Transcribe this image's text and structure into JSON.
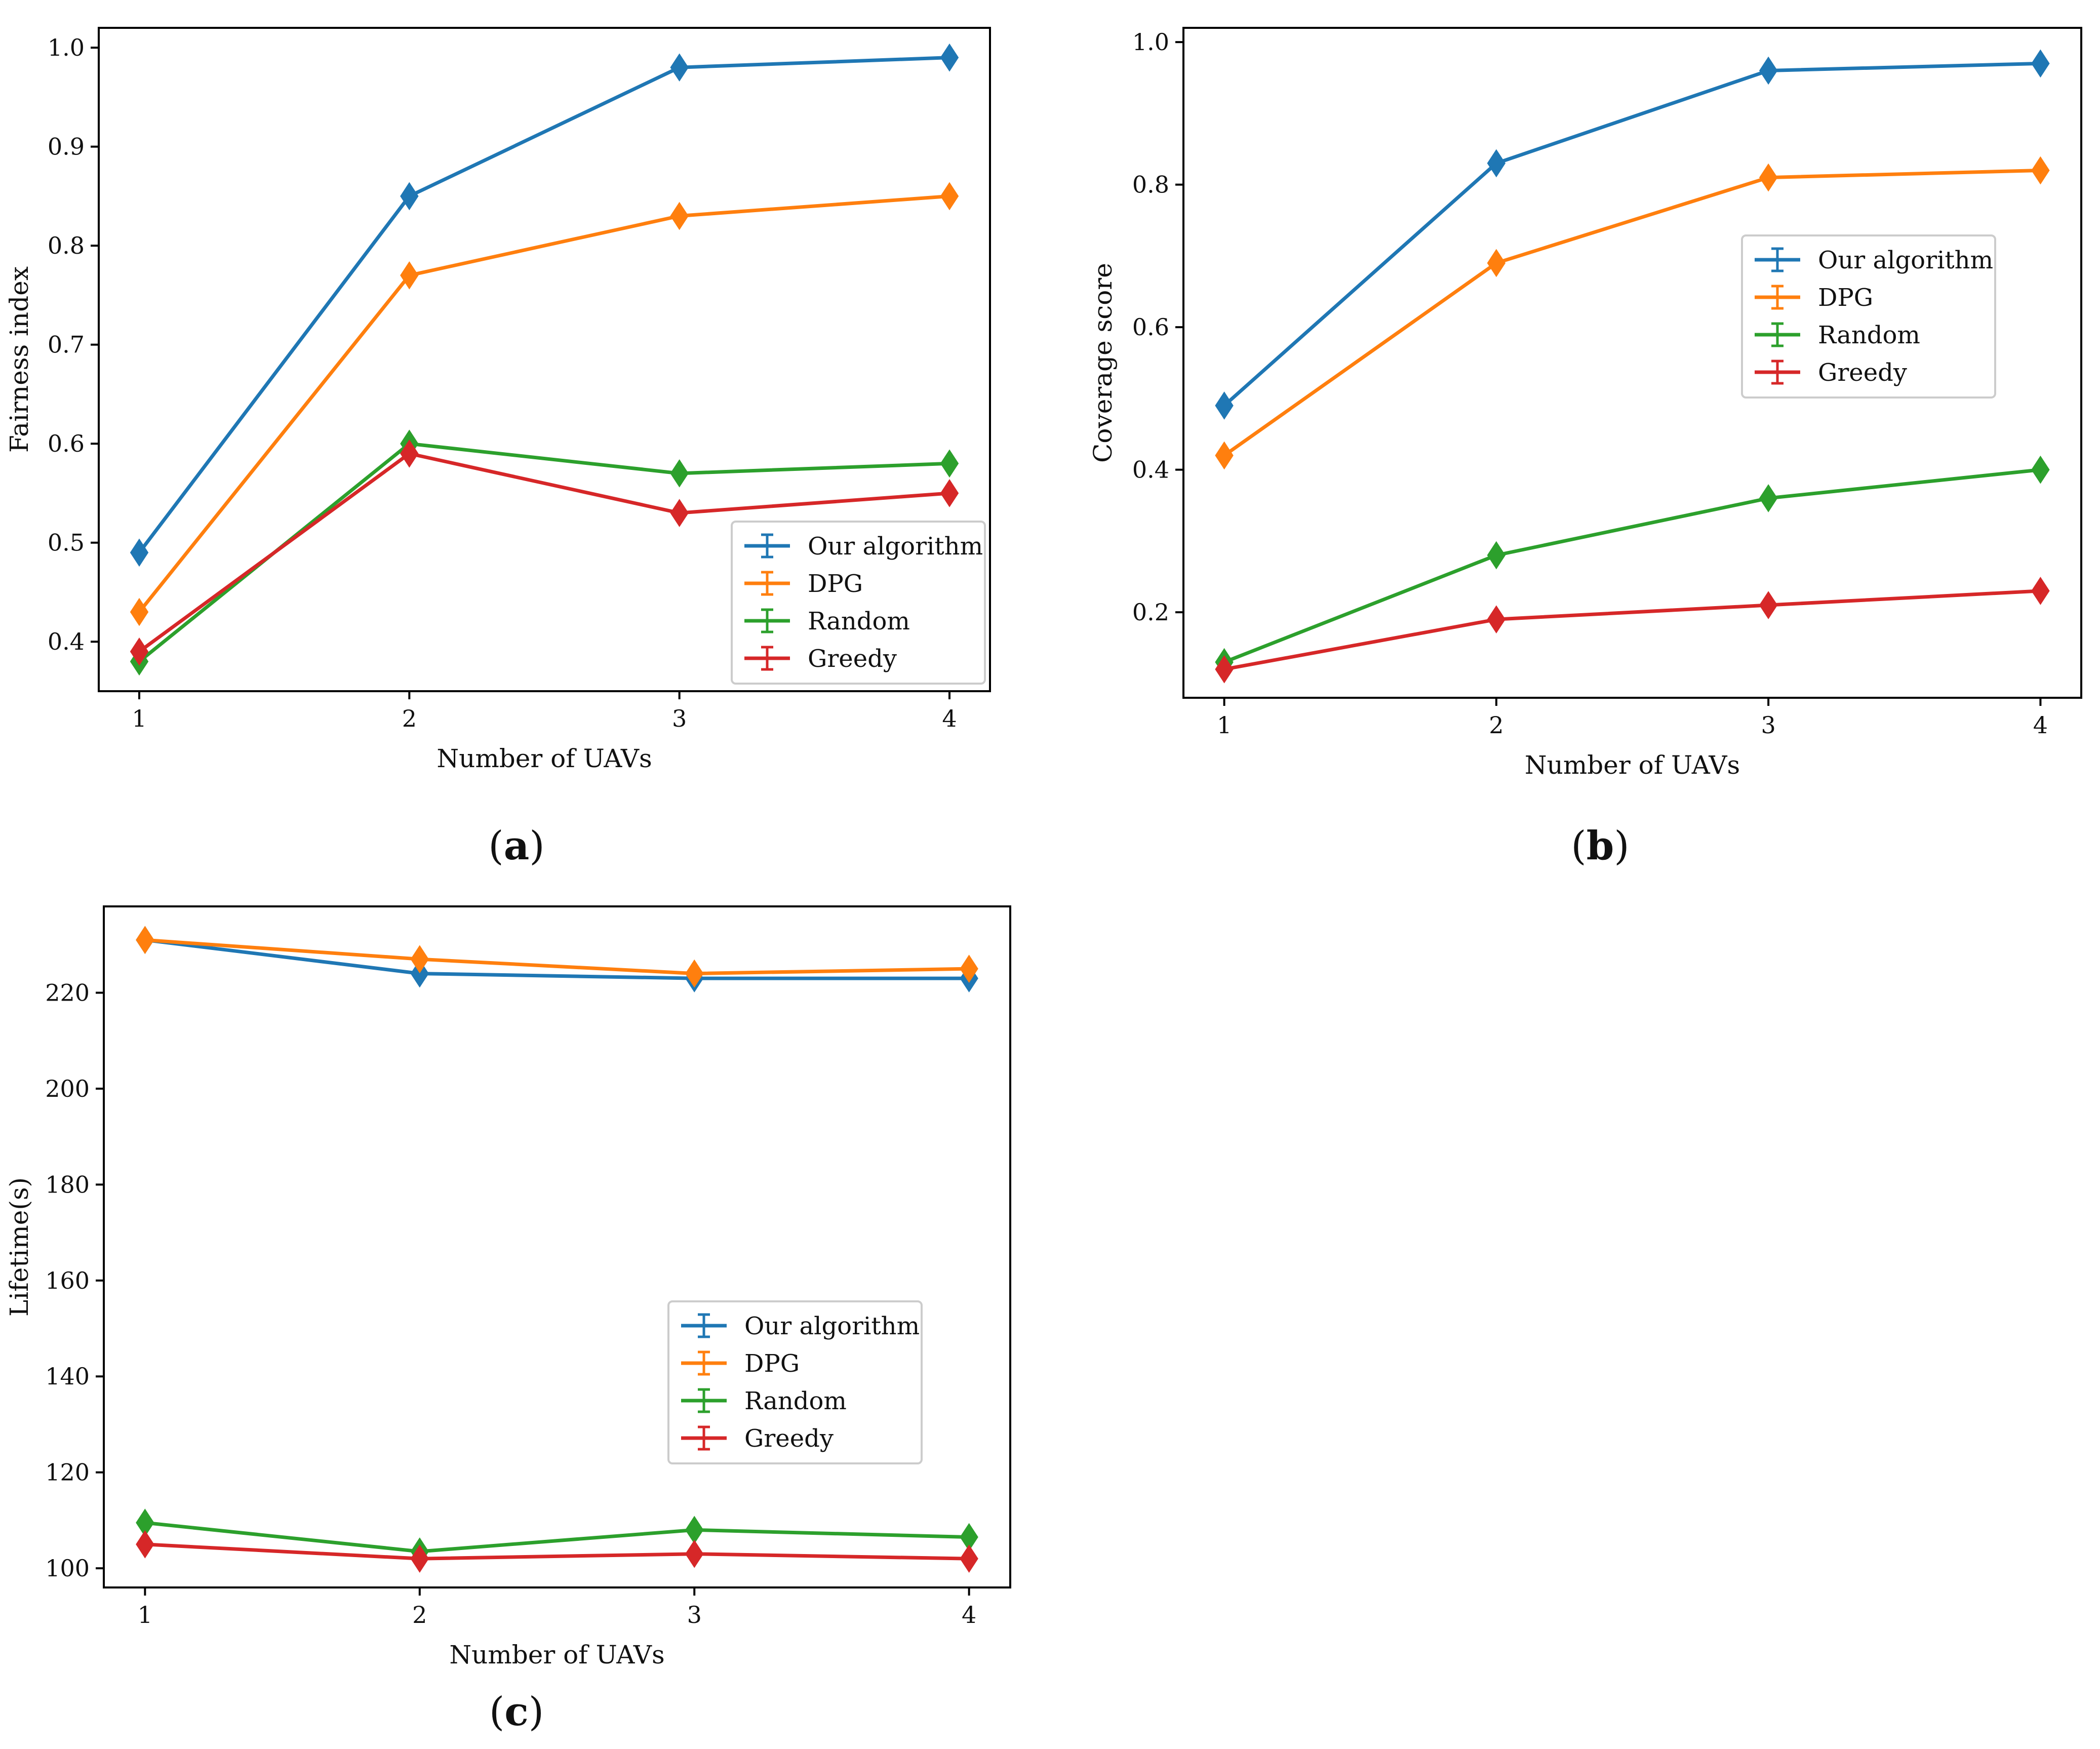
{
  "panels": [
    {
      "id": "a",
      "caption_letter": "a",
      "caption_open": "(",
      "caption_close": ")"
    },
    {
      "id": "b",
      "caption_letter": "b",
      "caption_open": "(",
      "caption_close": ")"
    },
    {
      "id": "c",
      "caption_letter": "c",
      "caption_open": "(",
      "caption_close": ")"
    }
  ],
  "colors": {
    "Our algorithm": "#1f77b4",
    "DPG": "#ff7f0e",
    "Random": "#2ca02c",
    "Greedy": "#d62728"
  },
  "chart_data": [
    {
      "panel": "a",
      "type": "line",
      "xlabel": "Number of UAVs",
      "ylabel": "Fairness index",
      "x": [
        1,
        2,
        3,
        4
      ],
      "xlim": [
        0.85,
        4.15
      ],
      "ylim": [
        0.35,
        1.02
      ],
      "yticks": [
        0.4,
        0.5,
        0.6,
        0.7,
        0.8,
        0.9,
        1.0
      ],
      "ytick_labels": [
        "0.4",
        "0.5",
        "0.6",
        "0.7",
        "0.8",
        "0.9",
        "1.0"
      ],
      "xticks": [
        1,
        2,
        3,
        4
      ],
      "xtick_labels": [
        "1",
        "2",
        "3",
        "4"
      ],
      "legend": "lower-right",
      "series": [
        {
          "name": "Our algorithm",
          "values": [
            0.49,
            0.85,
            0.98,
            0.99
          ]
        },
        {
          "name": "DPG",
          "values": [
            0.43,
            0.77,
            0.83,
            0.85
          ]
        },
        {
          "name": "Random",
          "values": [
            0.38,
            0.6,
            0.57,
            0.58
          ]
        },
        {
          "name": "Greedy",
          "values": [
            0.39,
            0.59,
            0.53,
            0.55
          ]
        }
      ]
    },
    {
      "panel": "b",
      "type": "line",
      "xlabel": "Number of UAVs",
      "ylabel": "Coverage score",
      "x": [
        1,
        2,
        3,
        4
      ],
      "xlim": [
        0.85,
        4.15
      ],
      "ylim": [
        0.08,
        1.02
      ],
      "yticks": [
        0.2,
        0.4,
        0.6,
        0.8,
        1.0
      ],
      "ytick_labels": [
        "0.2",
        "0.4",
        "0.6",
        "0.8",
        "1.0"
      ],
      "xticks": [
        1,
        2,
        3,
        4
      ],
      "xtick_labels": [
        "1",
        "2",
        "3",
        "4"
      ],
      "legend": "center-right",
      "series": [
        {
          "name": "Our algorithm",
          "values": [
            0.49,
            0.83,
            0.96,
            0.97
          ]
        },
        {
          "name": "DPG",
          "values": [
            0.42,
            0.69,
            0.81,
            0.82
          ]
        },
        {
          "name": "Random",
          "values": [
            0.13,
            0.28,
            0.36,
            0.4
          ]
        },
        {
          "name": "Greedy",
          "values": [
            0.12,
            0.19,
            0.21,
            0.23
          ]
        }
      ]
    },
    {
      "panel": "c",
      "type": "line",
      "xlabel": "Number of UAVs",
      "ylabel": "Lifetime(s)",
      "x": [
        1,
        2,
        3,
        4
      ],
      "xlim": [
        0.85,
        4.15
      ],
      "ylim": [
        96,
        238
      ],
      "yticks": [
        100,
        120,
        140,
        160,
        180,
        200,
        220
      ],
      "ytick_labels": [
        "100",
        "120",
        "140",
        "160",
        "180",
        "200",
        "220"
      ],
      "xticks": [
        1,
        2,
        3,
        4
      ],
      "xtick_labels": [
        "1",
        "2",
        "3",
        "4"
      ],
      "legend": "center-right",
      "series": [
        {
          "name": "Our algorithm",
          "values": [
            231,
            224,
            223,
            223
          ]
        },
        {
          "name": "DPG",
          "values": [
            231,
            227,
            224,
            225
          ]
        },
        {
          "name": "Random",
          "values": [
            109.5,
            103.5,
            108,
            106.5
          ]
        },
        {
          "name": "Greedy",
          "values": [
            105,
            102,
            103,
            102
          ]
        }
      ]
    }
  ]
}
